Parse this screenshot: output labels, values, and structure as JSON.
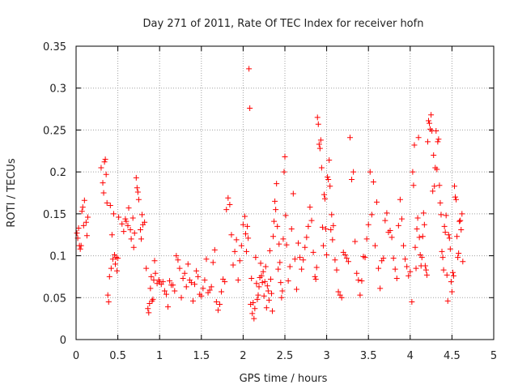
{
  "chart_data": {
    "type": "scatter",
    "title": "Day 271 of 2011, Rate Of TEC Index for receiver hofn",
    "xlabel": "GPS time / hours",
    "ylabel": "ROTI / TECUs",
    "xlim": [
      0,
      5
    ],
    "ylim": [
      0,
      0.35
    ],
    "x_ticks": [
      "0",
      "0.5",
      "1",
      "1.5",
      "2",
      "2.5",
      "3",
      "3.5",
      "4",
      "4.5",
      "5"
    ],
    "y_ticks": [
      "0",
      "0.05",
      "0.1",
      "0.15",
      "0.2",
      "0.25",
      "0.3",
      "0.35"
    ],
    "grid": true,
    "marker": "+",
    "color": "#ff0000",
    "points": [
      [
        0.01,
        0.127
      ],
      [
        0.02,
        0.121
      ],
      [
        0.03,
        0.133
      ],
      [
        0.04,
        0.112
      ],
      [
        0.05,
        0.108
      ],
      [
        0.06,
        0.112
      ],
      [
        0.07,
        0.153
      ],
      [
        0.08,
        0.158
      ],
      [
        0.09,
        0.136
      ],
      [
        0.1,
        0.166
      ],
      [
        0.12,
        0.14
      ],
      [
        0.13,
        0.124
      ],
      [
        0.14,
        0.146
      ],
      [
        0.3,
        0.205
      ],
      [
        0.32,
        0.187
      ],
      [
        0.33,
        0.175
      ],
      [
        0.34,
        0.212
      ],
      [
        0.35,
        0.215
      ],
      [
        0.36,
        0.197
      ],
      [
        0.37,
        0.163
      ],
      [
        0.38,
        0.053
      ],
      [
        0.39,
        0.045
      ],
      [
        0.4,
        0.075
      ],
      [
        0.41,
        0.16
      ],
      [
        0.42,
        0.085
      ],
      [
        0.43,
        0.125
      ],
      [
        0.44,
        0.096
      ],
      [
        0.45,
        0.15
      ],
      [
        0.46,
        0.101
      ],
      [
        0.47,
        0.09
      ],
      [
        0.48,
        0.098
      ],
      [
        0.49,
        0.082
      ],
      [
        0.5,
        0.097
      ],
      [
        0.51,
        0.146
      ],
      [
        0.55,
        0.138
      ],
      [
        0.57,
        0.129
      ],
      [
        0.59,
        0.144
      ],
      [
        0.6,
        0.141
      ],
      [
        0.62,
        0.136
      ],
      [
        0.63,
        0.157
      ],
      [
        0.65,
        0.131
      ],
      [
        0.66,
        0.12
      ],
      [
        0.68,
        0.145
      ],
      [
        0.69,
        0.11
      ],
      [
        0.7,
        0.127
      ],
      [
        0.72,
        0.193
      ],
      [
        0.73,
        0.181
      ],
      [
        0.74,
        0.176
      ],
      [
        0.75,
        0.167
      ],
      [
        0.77,
        0.131
      ],
      [
        0.78,
        0.12
      ],
      [
        0.79,
        0.149
      ],
      [
        0.8,
        0.137
      ],
      [
        0.82,
        0.14
      ],
      [
        0.84,
        0.085
      ],
      [
        0.86,
        0.037
      ],
      [
        0.87,
        0.032
      ],
      [
        0.88,
        0.043
      ],
      [
        0.89,
        0.061
      ],
      [
        0.9,
        0.075
      ],
      [
        0.91,
        0.046
      ],
      [
        0.92,
        0.048
      ],
      [
        0.93,
        0.071
      ],
      [
        0.94,
        0.094
      ],
      [
        0.95,
        0.079
      ],
      [
        0.97,
        0.067
      ],
      [
        0.99,
        0.071
      ],
      [
        1.0,
        0.069
      ],
      [
        1.02,
        0.066
      ],
      [
        1.04,
        0.069
      ],
      [
        1.06,
        0.058
      ],
      [
        1.08,
        0.054
      ],
      [
        1.1,
        0.039
      ],
      [
        1.12,
        0.07
      ],
      [
        1.14,
        0.065
      ],
      [
        1.16,
        0.065
      ],
      [
        1.18,
        0.058
      ],
      [
        1.2,
        0.1
      ],
      [
        1.22,
        0.095
      ],
      [
        1.24,
        0.085
      ],
      [
        1.26,
        0.05
      ],
      [
        1.28,
        0.073
      ],
      [
        1.3,
        0.079
      ],
      [
        1.32,
        0.063
      ],
      [
        1.34,
        0.09
      ],
      [
        1.36,
        0.071
      ],
      [
        1.38,
        0.068
      ],
      [
        1.4,
        0.046
      ],
      [
        1.42,
        0.066
      ],
      [
        1.44,
        0.082
      ],
      [
        1.46,
        0.075
      ],
      [
        1.48,
        0.054
      ],
      [
        1.5,
        0.052
      ],
      [
        1.52,
        0.061
      ],
      [
        1.54,
        0.071
      ],
      [
        1.56,
        0.096
      ],
      [
        1.58,
        0.056
      ],
      [
        1.6,
        0.059
      ],
      [
        1.62,
        0.063
      ],
      [
        1.64,
        0.092
      ],
      [
        1.66,
        0.107
      ],
      [
        1.68,
        0.045
      ],
      [
        1.7,
        0.035
      ],
      [
        1.72,
        0.042
      ],
      [
        1.74,
        0.057
      ],
      [
        1.76,
        0.072
      ],
      [
        1.78,
        0.069
      ],
      [
        1.8,
        0.155
      ],
      [
        1.82,
        0.169
      ],
      [
        1.84,
        0.161
      ],
      [
        1.86,
        0.125
      ],
      [
        1.88,
        0.089
      ],
      [
        1.9,
        0.105
      ],
      [
        1.92,
        0.119
      ],
      [
        1.94,
        0.071
      ],
      [
        1.96,
        0.094
      ],
      [
        1.98,
        0.112
      ],
      [
        2.0,
        0.137
      ],
      [
        2.02,
        0.147
      ],
      [
        2.03,
        0.126
      ],
      [
        2.04,
        0.105
      ],
      [
        2.05,
        0.135
      ],
      [
        2.06,
        0.121
      ],
      [
        2.07,
        0.323
      ],
      [
        2.08,
        0.276
      ],
      [
        2.09,
        0.042
      ],
      [
        2.1,
        0.073
      ],
      [
        2.11,
        0.031
      ],
      [
        2.12,
        0.044
      ],
      [
        2.13,
        0.025
      ],
      [
        2.14,
        0.037
      ],
      [
        2.15,
        0.098
      ],
      [
        2.16,
        0.067
      ],
      [
        2.17,
        0.048
      ],
      [
        2.18,
        0.053
      ],
      [
        2.19,
        0.063
      ],
      [
        2.2,
        0.074
      ],
      [
        2.21,
        0.091
      ],
      [
        2.22,
        0.076
      ],
      [
        2.23,
        0.068
      ],
      [
        2.24,
        0.081
      ],
      [
        2.25,
        0.052
      ],
      [
        2.26,
        0.069
      ],
      [
        2.27,
        0.087
      ],
      [
        2.28,
        0.038
      ],
      [
        2.29,
        0.064
      ],
      [
        2.3,
        0.058
      ],
      [
        2.31,
        0.047
      ],
      [
        2.32,
        0.106
      ],
      [
        2.33,
        0.072
      ],
      [
        2.34,
        0.055
      ],
      [
        2.35,
        0.034
      ],
      [
        2.36,
        0.123
      ],
      [
        2.37,
        0.141
      ],
      [
        2.38,
        0.165
      ],
      [
        2.39,
        0.155
      ],
      [
        2.4,
        0.186
      ],
      [
        2.41,
        0.135
      ],
      [
        2.42,
        0.084
      ],
      [
        2.43,
        0.114
      ],
      [
        2.44,
        0.092
      ],
      [
        2.45,
        0.068
      ],
      [
        2.46,
        0.05
      ],
      [
        2.47,
        0.058
      ],
      [
        2.48,
        0.12
      ],
      [
        2.49,
        0.2
      ],
      [
        2.5,
        0.218
      ],
      [
        2.51,
        0.148
      ],
      [
        2.52,
        0.113
      ],
      [
        2.54,
        0.07
      ],
      [
        2.56,
        0.087
      ],
      [
        2.58,
        0.132
      ],
      [
        2.6,
        0.174
      ],
      [
        2.62,
        0.096
      ],
      [
        2.64,
        0.06
      ],
      [
        2.66,
        0.115
      ],
      [
        2.68,
        0.098
      ],
      [
        2.7,
        0.084
      ],
      [
        2.72,
        0.095
      ],
      [
        2.74,
        0.11
      ],
      [
        2.76,
        0.122
      ],
      [
        2.78,
        0.135
      ],
      [
        2.8,
        0.158
      ],
      [
        2.82,
        0.142
      ],
      [
        2.84,
        0.104
      ],
      [
        2.86,
        0.075
      ],
      [
        2.87,
        0.072
      ],
      [
        2.88,
        0.086
      ],
      [
        2.89,
        0.265
      ],
      [
        2.9,
        0.257
      ],
      [
        2.91,
        0.233
      ],
      [
        2.92,
        0.228
      ],
      [
        2.93,
        0.238
      ],
      [
        2.94,
        0.205
      ],
      [
        2.95,
        0.134
      ],
      [
        2.96,
        0.112
      ],
      [
        2.97,
        0.173
      ],
      [
        2.98,
        0.168
      ],
      [
        2.99,
        0.132
      ],
      [
        3.0,
        0.101
      ],
      [
        3.01,
        0.194
      ],
      [
        3.02,
        0.191
      ],
      [
        3.03,
        0.214
      ],
      [
        3.04,
        0.183
      ],
      [
        3.05,
        0.131
      ],
      [
        3.06,
        0.149
      ],
      [
        3.07,
        0.119
      ],
      [
        3.08,
        0.136
      ],
      [
        3.1,
        0.095
      ],
      [
        3.12,
        0.083
      ],
      [
        3.14,
        0.057
      ],
      [
        3.16,
        0.053
      ],
      [
        3.18,
        0.05
      ],
      [
        3.2,
        0.104
      ],
      [
        3.22,
        0.101
      ],
      [
        3.24,
        0.097
      ],
      [
        3.26,
        0.093
      ],
      [
        3.28,
        0.241
      ],
      [
        3.3,
        0.191
      ],
      [
        3.32,
        0.2
      ],
      [
        3.34,
        0.117
      ],
      [
        3.36,
        0.079
      ],
      [
        3.38,
        0.071
      ],
      [
        3.4,
        0.053
      ],
      [
        3.42,
        0.07
      ],
      [
        3.44,
        0.099
      ],
      [
        3.46,
        0.098
      ],
      [
        3.48,
        0.12
      ],
      [
        3.5,
        0.137
      ],
      [
        3.52,
        0.2
      ],
      [
        3.54,
        0.149
      ],
      [
        3.56,
        0.188
      ],
      [
        3.58,
        0.112
      ],
      [
        3.6,
        0.164
      ],
      [
        3.62,
        0.085
      ],
      [
        3.64,
        0.061
      ],
      [
        3.66,
        0.094
      ],
      [
        3.68,
        0.097
      ],
      [
        3.7,
        0.142
      ],
      [
        3.72,
        0.151
      ],
      [
        3.74,
        0.128
      ],
      [
        3.76,
        0.13
      ],
      [
        3.78,
        0.122
      ],
      [
        3.8,
        0.097
      ],
      [
        3.82,
        0.084
      ],
      [
        3.84,
        0.073
      ],
      [
        3.86,
        0.136
      ],
      [
        3.88,
        0.167
      ],
      [
        3.9,
        0.144
      ],
      [
        3.92,
        0.112
      ],
      [
        3.94,
        0.096
      ],
      [
        3.96,
        0.087
      ],
      [
        3.98,
        0.076
      ],
      [
        4.0,
        0.081
      ],
      [
        4.02,
        0.045
      ],
      [
        4.03,
        0.2
      ],
      [
        4.04,
        0.184
      ],
      [
        4.05,
        0.232
      ],
      [
        4.06,
        0.11
      ],
      [
        4.07,
        0.085
      ],
      [
        4.08,
        0.132
      ],
      [
        4.09,
        0.145
      ],
      [
        4.1,
        0.241
      ],
      [
        4.11,
        0.122
      ],
      [
        4.12,
        0.101
      ],
      [
        4.13,
        0.088
      ],
      [
        4.14,
        0.098
      ],
      [
        4.15,
        0.123
      ],
      [
        4.16,
        0.151
      ],
      [
        4.17,
        0.137
      ],
      [
        4.18,
        0.088
      ],
      [
        4.19,
        0.083
      ],
      [
        4.2,
        0.077
      ],
      [
        4.21,
        0.236
      ],
      [
        4.22,
        0.261
      ],
      [
        4.23,
        0.258
      ],
      [
        4.24,
        0.251
      ],
      [
        4.25,
        0.268
      ],
      [
        4.26,
        0.249
      ],
      [
        4.27,
        0.177
      ],
      [
        4.28,
        0.22
      ],
      [
        4.29,
        0.183
      ],
      [
        4.3,
        0.205
      ],
      [
        4.31,
        0.249
      ],
      [
        4.32,
        0.203
      ],
      [
        4.33,
        0.236
      ],
      [
        4.34,
        0.239
      ],
      [
        4.35,
        0.184
      ],
      [
        4.36,
        0.163
      ],
      [
        4.37,
        0.149
      ],
      [
        4.38,
        0.105
      ],
      [
        4.39,
        0.098
      ],
      [
        4.4,
        0.083
      ],
      [
        4.41,
        0.135
      ],
      [
        4.42,
        0.128
      ],
      [
        4.43,
        0.148
      ],
      [
        4.44,
        0.077
      ],
      [
        4.45,
        0.046
      ],
      [
        4.46,
        0.125
      ],
      [
        4.47,
        0.121
      ],
      [
        4.48,
        0.108
      ],
      [
        4.49,
        0.069
      ],
      [
        4.5,
        0.057
      ],
      [
        4.51,
        0.08
      ],
      [
        4.52,
        0.076
      ],
      [
        4.53,
        0.183
      ],
      [
        4.54,
        0.17
      ],
      [
        4.55,
        0.167
      ],
      [
        4.56,
        0.123
      ],
      [
        4.57,
        0.098
      ],
      [
        4.58,
        0.103
      ],
      [
        4.59,
        0.141
      ],
      [
        4.6,
        0.142
      ],
      [
        4.61,
        0.131
      ],
      [
        4.62,
        0.15
      ],
      [
        4.63,
        0.093
      ]
    ]
  }
}
